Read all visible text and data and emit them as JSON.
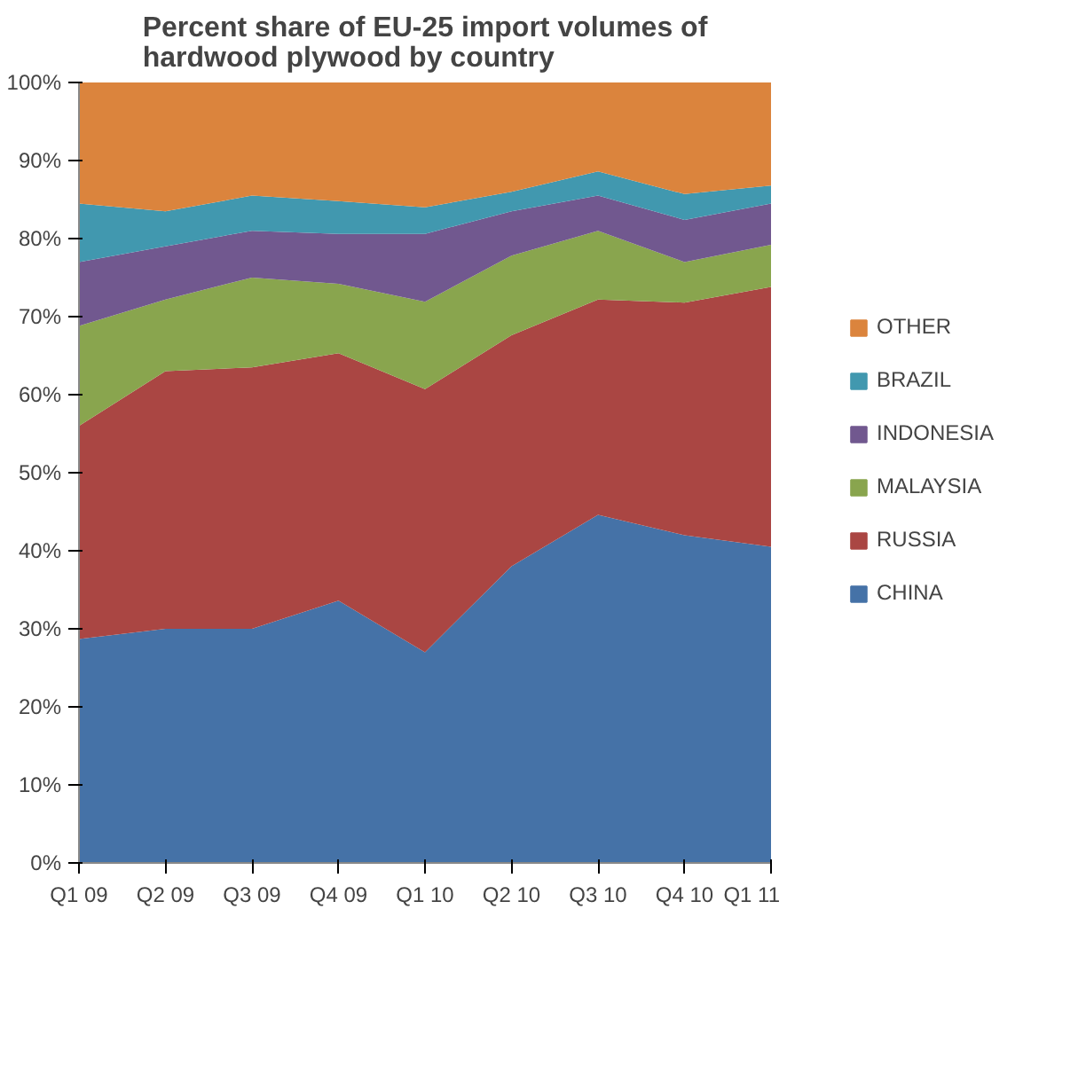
{
  "chart_data": {
    "type": "area",
    "stacked": true,
    "title": "Percent share of EU-25 import volumes of\nhardwood plywood by country",
    "categories": [
      "Q1 09",
      "Q2 09",
      "Q3 09",
      "Q4 09",
      "Q1 10",
      "Q2 10",
      "Q3 10",
      "Q4 10",
      "Q1 11"
    ],
    "series": [
      {
        "name": "CHINA",
        "color": "#4572a7",
        "values": [
          28.7,
          30,
          30,
          33.6,
          27,
          38,
          44.6,
          42,
          40.5
        ]
      },
      {
        "name": "RUSSIA",
        "color": "#aa4643",
        "values": [
          27.3,
          33,
          33.5,
          31.7,
          33.7,
          29.6,
          27.6,
          29.8,
          33.3
        ]
      },
      {
        "name": "MALAYSIA",
        "color": "#89a54e",
        "values": [
          12.8,
          9.2,
          11.5,
          8.9,
          11.2,
          10.2,
          8.8,
          5.2,
          5.4
        ]
      },
      {
        "name": "INDONESIA",
        "color": "#71588f",
        "values": [
          8.2,
          6.8,
          6,
          6.4,
          8.7,
          5.7,
          4.5,
          5.4,
          5.3
        ]
      },
      {
        "name": "BRAZIL",
        "color": "#4198af",
        "values": [
          7.5,
          4.5,
          4.5,
          4.2,
          3.4,
          2.5,
          3.1,
          3.3,
          2.3
        ]
      },
      {
        "name": "OTHER",
        "color": "#db843d",
        "values": [
          15.5,
          16.5,
          14.5,
          15.2,
          16,
          14,
          11.4,
          14.3,
          13.2
        ]
      }
    ],
    "ylim": [
      0,
      100
    ],
    "yticks": [
      {
        "value": 0,
        "label": "0%"
      },
      {
        "value": 10,
        "label": "10%"
      },
      {
        "value": 20,
        "label": "20%"
      },
      {
        "value": 30,
        "label": "30%"
      },
      {
        "value": 40,
        "label": "40%"
      },
      {
        "value": 50,
        "label": "50%"
      },
      {
        "value": 60,
        "label": "60%"
      },
      {
        "value": 70,
        "label": "70%"
      },
      {
        "value": 80,
        "label": "80%"
      },
      {
        "value": 90,
        "label": "90%"
      },
      {
        "value": 100,
        "label": "100%"
      }
    ],
    "grid": false,
    "legend": "right"
  }
}
